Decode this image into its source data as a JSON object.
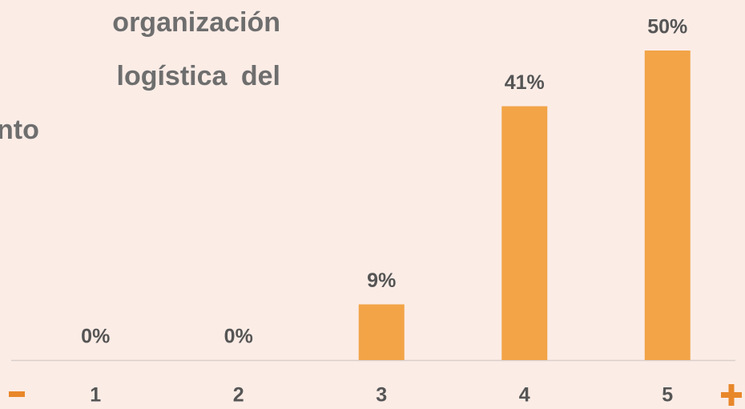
{
  "title_lines": [
    "organización",
    "logística del",
    "nto"
  ],
  "chart_data": {
    "type": "bar",
    "categories": [
      "1",
      "2",
      "3",
      "4",
      "5"
    ],
    "values": [
      0,
      0,
      9,
      41,
      50
    ],
    "value_labels": [
      "0%",
      "0%",
      "9%",
      "41%",
      "50%"
    ],
    "color": "#f2a447"
  }
}
